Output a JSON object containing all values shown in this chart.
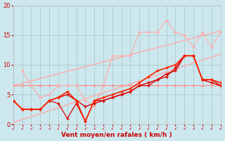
{
  "title": "",
  "xlabel": "Vent moyen/en rafales ( km/h )",
  "ylabel": "",
  "background_color": "#cce8ee",
  "grid_color": "#aacccc",
  "x": [
    0,
    1,
    2,
    3,
    4,
    5,
    6,
    7,
    8,
    9,
    10,
    11,
    12,
    13,
    14,
    15,
    16,
    17,
    18,
    19,
    20,
    21,
    22,
    23
  ],
  "straight1": [
    6.5,
    6.9,
    7.3,
    7.7,
    8.1,
    8.5,
    8.9,
    9.3,
    9.7,
    10.1,
    10.5,
    10.9,
    11.3,
    11.7,
    12.1,
    12.5,
    12.9,
    13.3,
    13.7,
    14.1,
    14.5,
    14.9,
    15.3,
    15.7
  ],
  "straight2": [
    0.3,
    0.8,
    1.3,
    1.8,
    2.3,
    2.8,
    3.3,
    3.8,
    4.3,
    4.8,
    5.3,
    5.8,
    6.3,
    6.8,
    7.3,
    7.8,
    8.3,
    8.8,
    9.3,
    9.8,
    10.3,
    10.8,
    11.3,
    11.8
  ],
  "noisy1_pink": [
    6.5,
    6.5,
    6.5,
    6.5,
    6.5,
    6.5,
    6.5,
    6.5,
    6.5,
    6.5,
    6.5,
    6.5,
    6.5,
    6.5,
    6.5,
    6.5,
    6.5,
    6.5,
    6.5,
    6.5,
    6.5,
    6.5,
    6.5,
    6.5
  ],
  "noisy2_pink": [
    null,
    9.0,
    6.5,
    4.5,
    5.0,
    6.5,
    6.5,
    6.5,
    4.0,
    3.0,
    6.5,
    11.5,
    11.5,
    11.5,
    15.5,
    15.5,
    15.5,
    17.5,
    15.5,
    15.0,
    13.0,
    15.5,
    13.0,
    15.5
  ],
  "noisy3_red": [
    4.0,
    2.5,
    2.5,
    2.5,
    4.0,
    4.5,
    5.0,
    4.0,
    3.0,
    3.5,
    4.0,
    4.5,
    5.0,
    5.5,
    6.5,
    7.0,
    7.5,
    8.5,
    9.0,
    11.5,
    11.5,
    7.5,
    7.0,
    6.5
  ],
  "noisy4_red": [
    4.0,
    2.5,
    2.5,
    2.5,
    4.0,
    4.5,
    5.5,
    4.0,
    0.5,
    4.0,
    4.5,
    5.0,
    5.5,
    6.0,
    7.0,
    8.0,
    9.0,
    9.5,
    10.0,
    11.5,
    11.5,
    7.5,
    7.5,
    7.0
  ],
  "noisy5_red": [
    4.0,
    2.5,
    2.5,
    2.5,
    4.0,
    3.5,
    1.0,
    3.5,
    0.5,
    4.0,
    4.0,
    4.5,
    5.0,
    5.5,
    6.5,
    6.5,
    7.5,
    8.0,
    9.5,
    11.5,
    11.5,
    7.5,
    7.5,
    6.5
  ],
  "color_light_pink": "#ffaaaa",
  "color_med_pink": "#ff8888",
  "color_red": "#dd0000",
  "color_bright_red": "#ff2200",
  "ylim": [
    0,
    20
  ],
  "xlim": [
    0,
    23
  ],
  "tick_color": "#cc0000",
  "label_color": "#cc0000"
}
